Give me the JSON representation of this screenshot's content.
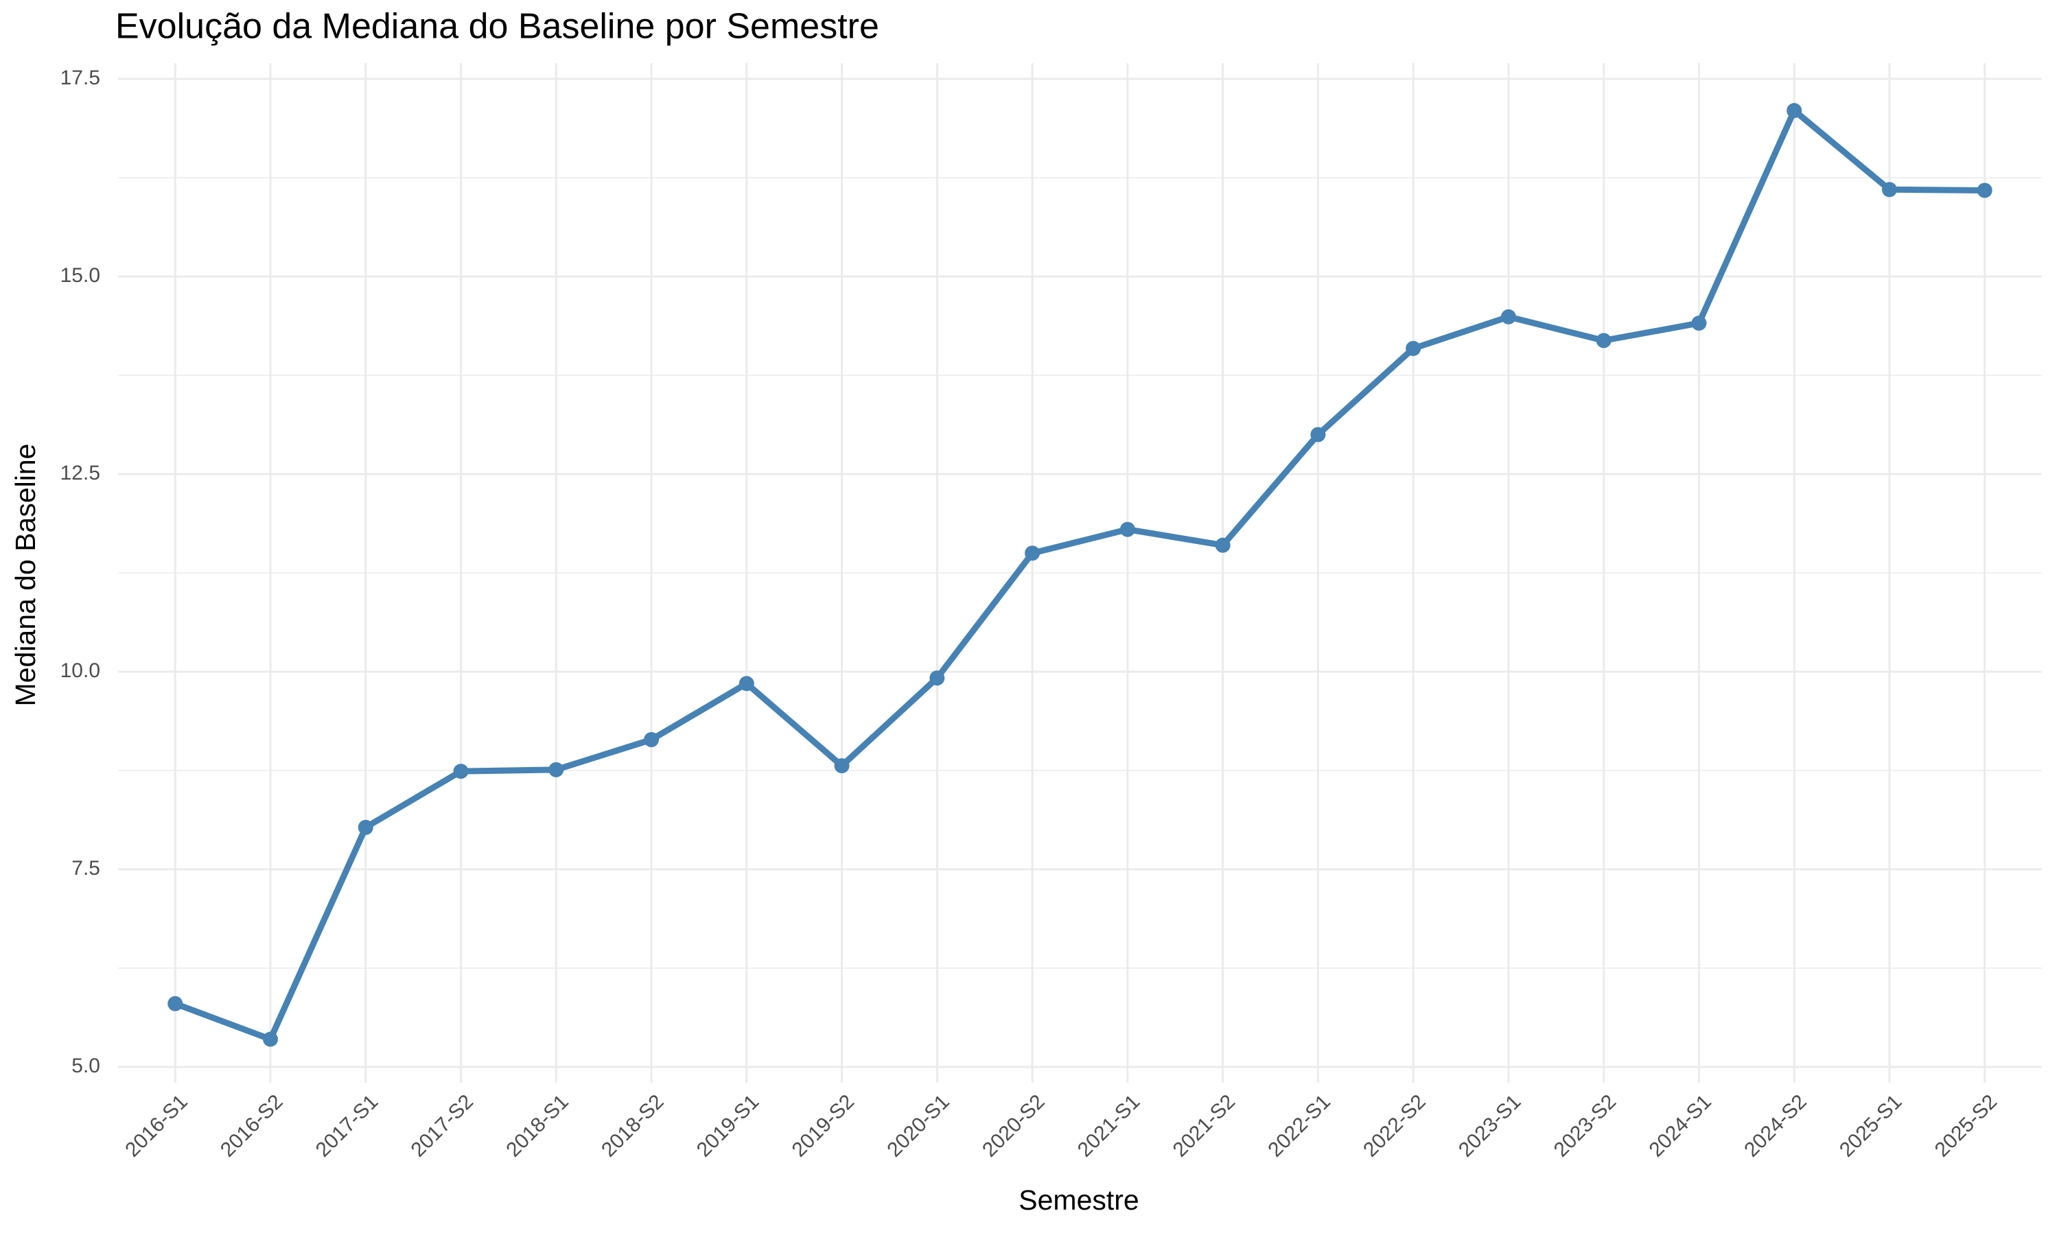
{
  "chart_data": {
    "type": "line",
    "title": "Evolução da Mediana do Baseline por Semestre",
    "x_label": "Semestre",
    "y_label": "Mediana do Baseline",
    "categories": [
      "2016-S1",
      "2016-S2",
      "2017-S1",
      "2017-S2",
      "2018-S1",
      "2018-S2",
      "2019-S1",
      "2019-S2",
      "2020-S1",
      "2020-S2",
      "2021-S1",
      "2021-S2",
      "2022-S1",
      "2022-S2",
      "2023-S1",
      "2023-S2",
      "2024-S1",
      "2024-S2",
      "2025-S1",
      "2025-S2"
    ],
    "values": [
      5.8,
      5.35,
      8.03,
      8.74,
      8.76,
      9.14,
      9.85,
      8.81,
      9.92,
      11.5,
      11.8,
      11.6,
      13.0,
      14.09,
      14.49,
      14.19,
      14.41,
      17.1,
      16.1,
      16.09
    ],
    "color": "#4682b4",
    "ylim": [
      4.8,
      17.7
    ],
    "yticks": [
      {
        "value": 5,
        "label": "5.0"
      },
      7.5,
      {
        "value": 10,
        "label": "10.0"
      },
      12.5,
      {
        "value": 15,
        "label": "15.0"
      },
      17.5
    ],
    "grid": true
  }
}
